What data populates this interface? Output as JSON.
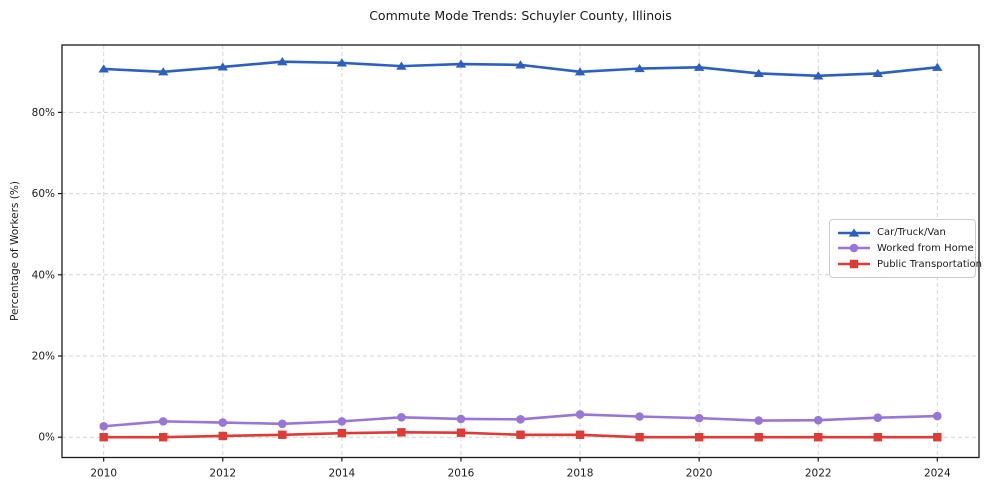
{
  "chart_data": {
    "type": "line",
    "title": "Commute Mode Trends: Schuyler County, Illinois",
    "xlabel": "",
    "ylabel": "Percentage of Workers (%)",
    "x": [
      2010,
      2011,
      2012,
      2013,
      2014,
      2015,
      2016,
      2017,
      2018,
      2019,
      2020,
      2021,
      2022,
      2023,
      2024
    ],
    "xticks": [
      2010,
      2012,
      2014,
      2016,
      2018,
      2020,
      2022,
      2024
    ],
    "xtick_labels": [
      "2010",
      "2012",
      "2014",
      "2016",
      "2018",
      "2020",
      "2022",
      "2024"
    ],
    "yticks": [
      0,
      20,
      40,
      60,
      80
    ],
    "ytick_labels": [
      "0%",
      "20%",
      "40%",
      "60%",
      "80%"
    ],
    "xlim": [
      2009.3,
      2024.7
    ],
    "ylim": [
      -5.0,
      96.6
    ],
    "grid": true,
    "legend_position": "right-middle",
    "colors": {
      "grid": "#d4d4d4",
      "spine": "#1a1a1a",
      "text": "#1a1a1a"
    },
    "series": [
      {
        "name": "Car/Truck/Van",
        "color": "#2b5fc2",
        "marker": "triangle",
        "values": [
          90.7,
          90.0,
          91.2,
          92.5,
          92.2,
          91.4,
          91.9,
          91.7,
          90.0,
          90.8,
          91.1,
          89.6,
          89.0,
          89.6,
          91.1
        ]
      },
      {
        "name": "Worked from Home",
        "color": "#9776d8",
        "marker": "circle",
        "values": [
          2.7,
          3.9,
          3.6,
          3.3,
          3.9,
          4.9,
          4.5,
          4.4,
          5.6,
          5.1,
          4.7,
          4.1,
          4.2,
          4.8,
          5.2
        ]
      },
      {
        "name": "Public Transportation",
        "color": "#e03a35",
        "marker": "square",
        "values": [
          0.0,
          0.0,
          0.3,
          0.6,
          1.0,
          1.2,
          1.1,
          0.6,
          0.6,
          0.0,
          0.0,
          0.0,
          0.0,
          0.0,
          0.0
        ]
      }
    ]
  }
}
